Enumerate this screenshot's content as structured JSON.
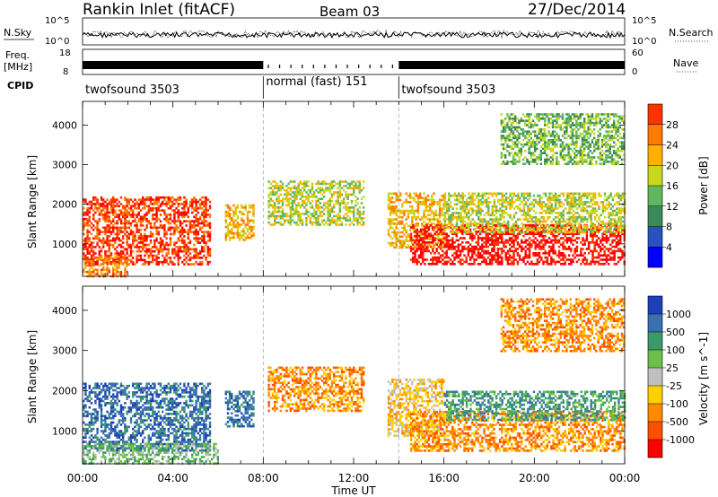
{
  "header": {
    "station": "Rankin Inlet (fitACF)",
    "beam": "Beam 03",
    "date": "27/Dec/2014"
  },
  "noise_panel": {
    "left_label": "N.Sky",
    "left_ticks": [
      "10^5",
      "10^0"
    ],
    "right_label": "N.Search",
    "right_ticks": [
      "10^5",
      "10^0"
    ]
  },
  "freq_panel": {
    "left_label_1": "Freq.",
    "left_label_2": "[MHz]",
    "left_ticks": [
      "18",
      "8"
    ],
    "right_label": "Nave",
    "right_ticks": [
      "60",
      "0"
    ]
  },
  "cpid": {
    "label": "CPID",
    "modes": [
      {
        "name": "twofsound 3503",
        "start_hour": 0,
        "end_hour": 8
      },
      {
        "name": "normal (fast) 151",
        "start_hour": 8,
        "end_hour": 14
      },
      {
        "name": "twofsound 3503",
        "start_hour": 14,
        "end_hour": 24
      }
    ]
  },
  "time_axis": {
    "label": "Time UT",
    "ticks": [
      "00:00",
      "04:00",
      "08:00",
      "12:00",
      "16:00",
      "20:00",
      "00:00"
    ]
  },
  "range_axis": {
    "label": "Slant Range [km]",
    "ticks": [
      "1000",
      "2000",
      "3000",
      "4000"
    ]
  },
  "power_scale": {
    "label": "Power [dB]",
    "ticks": [
      "4",
      "8",
      "12",
      "16",
      "20",
      "24",
      "28"
    ],
    "colors": [
      "#0000ff",
      "#2a52be",
      "#3a8a5a",
      "#5fb85f",
      "#c8d81e",
      "#ffb000",
      "#ff7a00",
      "#ff3300",
      "#ff0000"
    ]
  },
  "velocity_scale": {
    "label": "Velocity [m s^-1]",
    "ticks": [
      "1000",
      "500",
      "100",
      "25",
      "-25",
      "-100",
      "-500",
      "-1000"
    ],
    "colors": [
      "#1f3fb8",
      "#3a6fb0",
      "#3a9a6a",
      "#6ac04a",
      "#c0c0c0",
      "#ffd000",
      "#ff8a00",
      "#ff5000",
      "#ff0000"
    ]
  },
  "chart_data": {
    "type": "heatmap",
    "title": "Rankin Inlet (fitACF)",
    "xlabel": "Time UT",
    "ylabel": "Slant Range [km]",
    "xlim": [
      0,
      24
    ],
    "ylim": [
      180,
      4600
    ],
    "mode_boundaries_hours": [
      8,
      14
    ],
    "power_echo_regions": [
      {
        "t0": 0,
        "t1": 5.6,
        "r0": 500,
        "r1": 2200,
        "level": 7
      },
      {
        "t0": 0,
        "t1": 2,
        "r0": 200,
        "r1": 700,
        "level": 6
      },
      {
        "t0": 6.3,
        "t1": 7.6,
        "r0": 1100,
        "r1": 2000,
        "level": 5
      },
      {
        "t0": 8.2,
        "t1": 12.4,
        "r0": 1500,
        "r1": 2600,
        "level": 4
      },
      {
        "t0": 13.5,
        "t1": 16,
        "r0": 900,
        "r1": 2300,
        "level": 5
      },
      {
        "t0": 14.5,
        "t1": 24,
        "r0": 500,
        "r1": 1500,
        "level": 8
      },
      {
        "t0": 16,
        "t1": 24,
        "r0": 1300,
        "r1": 2300,
        "level": 4
      },
      {
        "t0": 18.5,
        "t1": 24,
        "r0": 3000,
        "r1": 4300,
        "level": 3
      }
    ],
    "velocity_echo_regions": [
      {
        "t0": 0,
        "t1": 5.6,
        "r0": 500,
        "r1": 2200,
        "vel": 500
      },
      {
        "t0": 0,
        "t1": 6,
        "r0": 200,
        "r1": 700,
        "vel": 25
      },
      {
        "t0": 6.3,
        "t1": 7.6,
        "r0": 1100,
        "r1": 2000,
        "vel": 500
      },
      {
        "t0": 8.2,
        "t1": 12.4,
        "r0": 1500,
        "r1": 2600,
        "vel": -500
      },
      {
        "t0": 13.5,
        "t1": 16,
        "r0": 900,
        "r1": 2300,
        "vel": -100
      },
      {
        "t0": 14.5,
        "t1": 24,
        "r0": 500,
        "r1": 1500,
        "vel": -500
      },
      {
        "t0": 16,
        "t1": 24,
        "r0": 1300,
        "r1": 2000,
        "vel": 100
      },
      {
        "t0": 18.5,
        "t1": 24,
        "r0": 3000,
        "r1": 4300,
        "vel": -500
      }
    ]
  }
}
